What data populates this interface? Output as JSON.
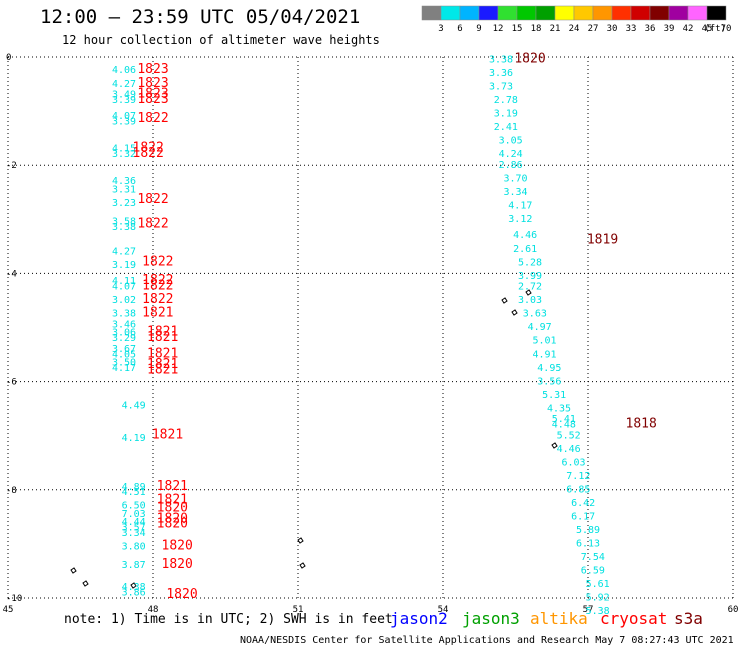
{
  "title": "12:00 — 23:59 UTC 05/04/2021",
  "subtitle": "12 hour collection of altimeter wave heights",
  "note": "note: 1) Time is in UTC; 2) SWH is in feet",
  "credit": "NOAA/NESDIS Center for Satellite Applications and Research   May  7 08:27:43 UTC 2021",
  "units_label": "(ft)",
  "colorbar": {
    "labels": [
      "3",
      "6",
      "9",
      "12",
      "15",
      "18",
      "21",
      "24",
      "27",
      "30",
      "33",
      "36",
      "39",
      "42",
      "45",
      "70"
    ],
    "colors": [
      "#808080",
      "#00e8e8",
      "#00b4ff",
      "#1a1aff",
      "#30e030",
      "#00c800",
      "#00a000",
      "#ffff00",
      "#ffc800",
      "#ff9600",
      "#ff3000",
      "#d00000",
      "#800000",
      "#a000a0",
      "#ff64ff",
      "#000000"
    ]
  },
  "satellites": [
    {
      "name": "jason2",
      "color": "#0000ff"
    },
    {
      "name": "jason3",
      "color": "#00a000"
    },
    {
      "name": "altika",
      "color": "#ff9600"
    },
    {
      "name": "cryosat",
      "color": "#ff0000"
    },
    {
      "name": "s3a",
      "color": "#800000"
    }
  ],
  "chart_data": {
    "type": "scatter",
    "title": "12:00 — 23:59 UTC 05/04/2021",
    "subtitle": "12 hour collection of altimeter wave heights",
    "xlim": [
      45,
      60
    ],
    "ylim": [
      -10,
      0
    ],
    "x_ticks": [
      "45",
      "48",
      "51",
      "54",
      "57",
      "60"
    ],
    "y_ticks": [
      "0",
      "-2",
      "-4",
      "-6",
      "-8",
      "-10"
    ],
    "grid": true,
    "series": [
      {
        "name": "cryosat",
        "points": [
          {
            "x": 47.4,
            "y": -0.3,
            "v": "4.06"
          },
          {
            "x": 47.4,
            "y": -0.55,
            "v": "4.27"
          },
          {
            "x": 47.4,
            "y": -0.75,
            "v": "3.49"
          },
          {
            "x": 47.4,
            "y": -0.85,
            "v": "3.39"
          },
          {
            "x": 47.4,
            "y": -1.15,
            "v": "4.07"
          },
          {
            "x": 47.4,
            "y": -1.25,
            "v": "3.39"
          },
          {
            "x": 47.4,
            "y": -1.75,
            "v": "4.15"
          },
          {
            "x": 47.4,
            "y": -1.85,
            "v": "3.32"
          },
          {
            "x": 47.4,
            "y": -2.35,
            "v": "4.36"
          },
          {
            "x": 47.4,
            "y": -2.5,
            "v": "3.31"
          },
          {
            "x": 47.4,
            "y": -2.75,
            "v": "3.23"
          },
          {
            "x": 47.4,
            "y": -3.1,
            "v": "3.58"
          },
          {
            "x": 47.4,
            "y": -3.2,
            "v": "3.38"
          },
          {
            "x": 47.4,
            "y": -3.65,
            "v": "4.27"
          },
          {
            "x": 47.4,
            "y": -3.9,
            "v": "3.19"
          },
          {
            "x": 47.4,
            "y": -4.2,
            "v": "4.11"
          },
          {
            "x": 47.4,
            "y": -4.3,
            "v": "4.07"
          },
          {
            "x": 47.4,
            "y": -4.55,
            "v": "3.02"
          },
          {
            "x": 47.4,
            "y": -4.8,
            "v": "3.38"
          },
          {
            "x": 47.4,
            "y": -5.0,
            "v": "3.46"
          },
          {
            "x": 47.4,
            "y": -5.15,
            "v": "3.06"
          },
          {
            "x": 47.4,
            "y": -5.25,
            "v": "3.29"
          },
          {
            "x": 47.4,
            "y": -5.45,
            "v": "3.67"
          },
          {
            "x": 47.4,
            "y": -5.55,
            "v": "4.05"
          },
          {
            "x": 47.4,
            "y": -5.7,
            "v": "3.50"
          },
          {
            "x": 47.4,
            "y": -5.8,
            "v": "4.17"
          },
          {
            "x": 47.6,
            "y": -6.5,
            "v": "4.49"
          },
          {
            "x": 47.6,
            "y": -7.1,
            "v": "4.19"
          },
          {
            "x": 47.6,
            "y": -8.0,
            "v": "4.89"
          },
          {
            "x": 47.6,
            "y": -8.1,
            "v": "4.51"
          },
          {
            "x": 47.6,
            "y": -8.35,
            "v": "6.50"
          },
          {
            "x": 47.6,
            "y": -8.5,
            "v": "7.03"
          },
          {
            "x": 47.6,
            "y": -8.65,
            "v": "4.44"
          },
          {
            "x": 47.6,
            "y": -8.75,
            "v": "3.57"
          },
          {
            "x": 47.6,
            "y": -8.85,
            "v": "3.34"
          },
          {
            "x": 47.6,
            "y": -9.1,
            "v": "3.80"
          },
          {
            "x": 47.6,
            "y": -9.45,
            "v": "3.87"
          },
          {
            "x": 47.6,
            "y": -9.85,
            "v": "4.38"
          },
          {
            "x": 47.6,
            "y": -9.95,
            "v": "3.86"
          }
        ]
      },
      {
        "name": "s3a",
        "points": [
          {
            "x": 55.2,
            "y": -0.1,
            "v": "3.38"
          },
          {
            "x": 55.2,
            "y": -0.35,
            "v": "3.36"
          },
          {
            "x": 55.2,
            "y": -0.6,
            "v": "3.73"
          },
          {
            "x": 55.3,
            "y": -0.85,
            "v": "2.78"
          },
          {
            "x": 55.3,
            "y": -1.1,
            "v": "3.19"
          },
          {
            "x": 55.3,
            "y": -1.35,
            "v": "2.41"
          },
          {
            "x": 55.4,
            "y": -1.6,
            "v": "3.05"
          },
          {
            "x": 55.4,
            "y": -1.85,
            "v": "4.24"
          },
          {
            "x": 55.4,
            "y": -2.05,
            "v": "2.86"
          },
          {
            "x": 55.5,
            "y": -2.3,
            "v": "3.70"
          },
          {
            "x": 55.5,
            "y": -2.55,
            "v": "3.34"
          },
          {
            "x": 55.6,
            "y": -2.8,
            "v": "4.17"
          },
          {
            "x": 55.6,
            "y": -3.05,
            "v": "3.12"
          },
          {
            "x": 55.7,
            "y": -3.35,
            "v": "4.46"
          },
          {
            "x": 55.7,
            "y": -3.6,
            "v": "2.61"
          },
          {
            "x": 55.8,
            "y": -3.85,
            "v": "5.28"
          },
          {
            "x": 55.8,
            "y": -4.1,
            "v": "3.99"
          },
          {
            "x": 55.8,
            "y": -4.3,
            "v": "2.72"
          },
          {
            "x": 55.8,
            "y": -4.55,
            "v": "3.03"
          },
          {
            "x": 55.9,
            "y": -4.8,
            "v": "3.63"
          },
          {
            "x": 56.0,
            "y": -5.05,
            "v": "4.97"
          },
          {
            "x": 56.1,
            "y": -5.3,
            "v": "5.01"
          },
          {
            "x": 56.1,
            "y": -5.55,
            "v": "4.91"
          },
          {
            "x": 56.2,
            "y": -5.8,
            "v": "4.95"
          },
          {
            "x": 56.2,
            "y": -6.05,
            "v": "3.56"
          },
          {
            "x": 56.3,
            "y": -6.3,
            "v": "5.31"
          },
          {
            "x": 56.4,
            "y": -6.55,
            "v": "4.35"
          },
          {
            "x": 56.5,
            "y": -6.75,
            "v": "5.41"
          },
          {
            "x": 56.5,
            "y": -6.85,
            "v": "4.48"
          },
          {
            "x": 56.6,
            "y": -7.05,
            "v": "5.52"
          },
          {
            "x": 56.6,
            "y": -7.3,
            "v": "4.46"
          },
          {
            "x": 56.7,
            "y": -7.55,
            "v": "6.03"
          },
          {
            "x": 56.8,
            "y": -7.8,
            "v": "7.12"
          },
          {
            "x": 56.8,
            "y": -8.05,
            "v": "6.85"
          },
          {
            "x": 56.9,
            "y": -8.3,
            "v": "6.42"
          },
          {
            "x": 56.9,
            "y": -8.55,
            "v": "6.17"
          },
          {
            "x": 57.0,
            "y": -8.8,
            "v": "5.89"
          },
          {
            "x": 57.0,
            "y": -9.05,
            "v": "6.13"
          },
          {
            "x": 57.1,
            "y": -9.3,
            "v": "7.54"
          },
          {
            "x": 57.1,
            "y": -9.55,
            "v": "6.59"
          },
          {
            "x": 57.2,
            "y": -9.8,
            "v": "5.61"
          },
          {
            "x": 57.2,
            "y": -10.05,
            "v": "5.92"
          },
          {
            "x": 57.2,
            "y": -10.3,
            "v": "5.38"
          }
        ]
      }
    ],
    "time_labels": [
      {
        "x": 48.0,
        "y": -0.3,
        "t": "1823",
        "sat": "cryosat"
      },
      {
        "x": 48.0,
        "y": -0.55,
        "t": "1823",
        "sat": "cryosat"
      },
      {
        "x": 48.0,
        "y": -0.75,
        "t": "1823",
        "sat": "cryosat"
      },
      {
        "x": 48.0,
        "y": -0.85,
        "t": "1823",
        "sat": "cryosat"
      },
      {
        "x": 48.0,
        "y": -1.2,
        "t": "1822",
        "sat": "cryosat"
      },
      {
        "x": 47.9,
        "y": -1.75,
        "t": "1822",
        "sat": "cryosat"
      },
      {
        "x": 47.9,
        "y": -1.85,
        "t": "1822",
        "sat": "cryosat"
      },
      {
        "x": 48.0,
        "y": -2.7,
        "t": "1822",
        "sat": "cryosat"
      },
      {
        "x": 48.0,
        "y": -3.15,
        "t": "1822",
        "sat": "cryosat"
      },
      {
        "x": 48.1,
        "y": -3.85,
        "t": "1822",
        "sat": "cryosat"
      },
      {
        "x": 48.1,
        "y": -4.2,
        "t": "1822",
        "sat": "cryosat"
      },
      {
        "x": 48.1,
        "y": -4.3,
        "t": "1822",
        "sat": "cryosat"
      },
      {
        "x": 48.1,
        "y": -4.55,
        "t": "1822",
        "sat": "cryosat"
      },
      {
        "x": 48.1,
        "y": -4.8,
        "t": "1821",
        "sat": "cryosat"
      },
      {
        "x": 48.2,
        "y": -5.15,
        "t": "1821",
        "sat": "cryosat"
      },
      {
        "x": 48.2,
        "y": -5.25,
        "t": "1821",
        "sat": "cryosat"
      },
      {
        "x": 48.2,
        "y": -5.55,
        "t": "1821",
        "sat": "cryosat"
      },
      {
        "x": 48.2,
        "y": -5.75,
        "t": "1821",
        "sat": "cryosat"
      },
      {
        "x": 48.2,
        "y": -5.85,
        "t": "1821",
        "sat": "cryosat"
      },
      {
        "x": 48.3,
        "y": -7.05,
        "t": "1821",
        "sat": "cryosat"
      },
      {
        "x": 48.4,
        "y": -8.0,
        "t": "1821",
        "sat": "cryosat"
      },
      {
        "x": 48.4,
        "y": -8.25,
        "t": "1821",
        "sat": "cryosat"
      },
      {
        "x": 48.4,
        "y": -8.4,
        "t": "1820",
        "sat": "cryosat"
      },
      {
        "x": 48.4,
        "y": -8.6,
        "t": "1820",
        "sat": "cryosat"
      },
      {
        "x": 48.4,
        "y": -8.7,
        "t": "1820",
        "sat": "cryosat"
      },
      {
        "x": 48.5,
        "y": -9.1,
        "t": "1820",
        "sat": "cryosat"
      },
      {
        "x": 48.5,
        "y": -9.45,
        "t": "1820",
        "sat": "cryosat"
      },
      {
        "x": 48.6,
        "y": -10.0,
        "t": "1820",
        "sat": "cryosat"
      },
      {
        "x": 55.8,
        "y": -0.1,
        "t": "1820",
        "sat": "s3a"
      },
      {
        "x": 57.3,
        "y": -3.45,
        "t": "1819",
        "sat": "s3a"
      },
      {
        "x": 58.1,
        "y": -6.85,
        "t": "1818",
        "sat": "s3a"
      }
    ]
  }
}
